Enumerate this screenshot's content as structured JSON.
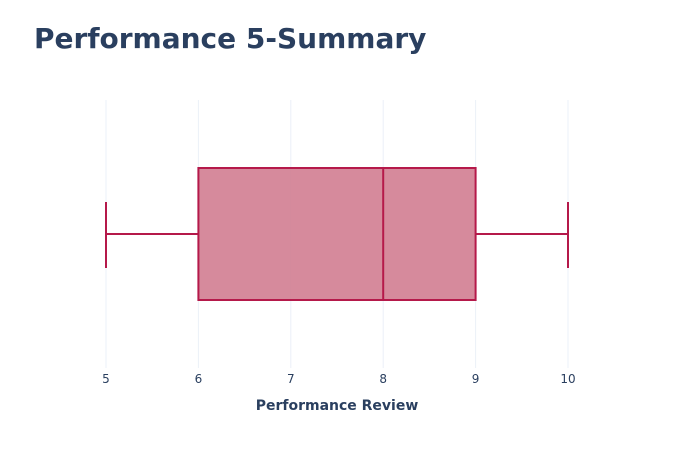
{
  "chart_data": {
    "type": "box",
    "title": "Performance 5-Summary",
    "xlabel": "Performance Review",
    "ylabel": "",
    "orientation": "horizontal",
    "series": [
      {
        "min": 5,
        "q1": 6,
        "median": 8,
        "q3": 9,
        "max": 10
      }
    ],
    "xlim": [
      5,
      10
    ],
    "x_ticks": [
      5,
      6,
      7,
      8,
      9,
      10
    ],
    "grid": true,
    "legend": "none",
    "colors": {
      "box_line": "#b5194a",
      "box_fill": "#d07a8e",
      "grid": "#ebf0f8",
      "text": "#2a3f5f"
    }
  }
}
